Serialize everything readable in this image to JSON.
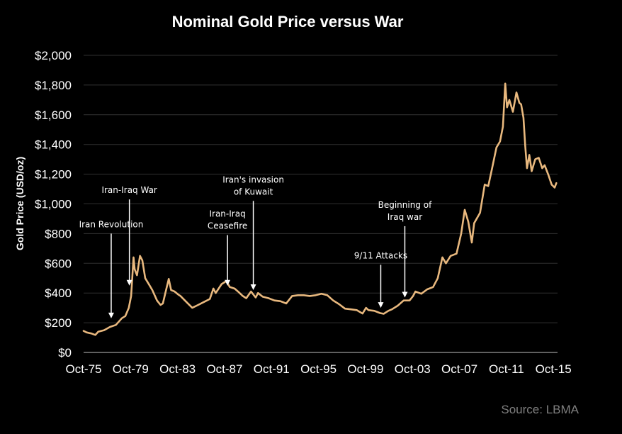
{
  "chart_data": {
    "type": "line",
    "title": "Nominal Gold Price versus War",
    "ylabel": "Gold Price (USD/oz)",
    "xlabel": "",
    "ylim": [
      0,
      2000
    ],
    "xlim": [
      1975.75,
      2016.1
    ],
    "grid": true,
    "line_color": "#e8b87e",
    "y_ticks": [
      {
        "value": 0,
        "label": "$0"
      },
      {
        "value": 200,
        "label": "$200"
      },
      {
        "value": 400,
        "label": "$400"
      },
      {
        "value": 600,
        "label": "$600"
      },
      {
        "value": 800,
        "label": "$800"
      },
      {
        "value": 1000,
        "label": "$1,000"
      },
      {
        "value": 1200,
        "label": "$1,200"
      },
      {
        "value": 1400,
        "label": "$1,400"
      },
      {
        "value": 1600,
        "label": "$1,600"
      },
      {
        "value": 1800,
        "label": "$1,800"
      },
      {
        "value": 2000,
        "label": "$2,000"
      }
    ],
    "x_ticks": [
      {
        "value": 1975.75,
        "label": "Oct-75"
      },
      {
        "value": 1979.75,
        "label": "Oct-79"
      },
      {
        "value": 1983.75,
        "label": "Oct-83"
      },
      {
        "value": 1987.75,
        "label": "Oct-87"
      },
      {
        "value": 1991.75,
        "label": "Oct-91"
      },
      {
        "value": 1995.75,
        "label": "Oct-95"
      },
      {
        "value": 1999.75,
        "label": "Oct-99"
      },
      {
        "value": 2003.75,
        "label": "Oct-03"
      },
      {
        "value": 2007.75,
        "label": "Oct-07"
      },
      {
        "value": 2011.75,
        "label": "Oct-11"
      },
      {
        "value": 2015.75,
        "label": "Oct-15"
      }
    ],
    "series": [
      {
        "points": [
          [
            1975.75,
            145
          ],
          [
            1976.0,
            135
          ],
          [
            1976.4,
            128
          ],
          [
            1976.75,
            118
          ],
          [
            1977.0,
            140
          ],
          [
            1977.5,
            150
          ],
          [
            1978.0,
            172
          ],
          [
            1978.5,
            185
          ],
          [
            1979.0,
            230
          ],
          [
            1979.3,
            245
          ],
          [
            1979.6,
            300
          ],
          [
            1979.8,
            380
          ],
          [
            1980.0,
            640
          ],
          [
            1980.1,
            560
          ],
          [
            1980.3,
            520
          ],
          [
            1980.55,
            650
          ],
          [
            1980.75,
            620
          ],
          [
            1981.0,
            500
          ],
          [
            1981.3,
            460
          ],
          [
            1981.6,
            420
          ],
          [
            1982.0,
            350
          ],
          [
            1982.3,
            320
          ],
          [
            1982.5,
            330
          ],
          [
            1982.8,
            430
          ],
          [
            1983.0,
            495
          ],
          [
            1983.2,
            420
          ],
          [
            1983.5,
            410
          ],
          [
            1983.8,
            390
          ],
          [
            1984.0,
            380
          ],
          [
            1984.5,
            340
          ],
          [
            1985.0,
            300
          ],
          [
            1985.5,
            320
          ],
          [
            1986.0,
            340
          ],
          [
            1986.5,
            360
          ],
          [
            1986.8,
            430
          ],
          [
            1987.0,
            400
          ],
          [
            1987.5,
            460
          ],
          [
            1987.9,
            480
          ],
          [
            1988.2,
            440
          ],
          [
            1988.6,
            430
          ],
          [
            1988.9,
            410
          ],
          [
            1989.3,
            380
          ],
          [
            1989.6,
            365
          ],
          [
            1990.0,
            410
          ],
          [
            1990.4,
            370
          ],
          [
            1990.6,
            400
          ],
          [
            1991.0,
            375
          ],
          [
            1991.5,
            365
          ],
          [
            1992.0,
            350
          ],
          [
            1992.5,
            345
          ],
          [
            1993.0,
            330
          ],
          [
            1993.5,
            380
          ],
          [
            1994.0,
            385
          ],
          [
            1994.5,
            385
          ],
          [
            1995.0,
            380
          ],
          [
            1995.5,
            385
          ],
          [
            1996.0,
            395
          ],
          [
            1996.5,
            385
          ],
          [
            1997.0,
            350
          ],
          [
            1997.5,
            325
          ],
          [
            1998.0,
            295
          ],
          [
            1998.5,
            290
          ],
          [
            1999.0,
            285
          ],
          [
            1999.5,
            262
          ],
          [
            1999.8,
            300
          ],
          [
            2000.0,
            285
          ],
          [
            2000.5,
            280
          ],
          [
            2001.0,
            265
          ],
          [
            2001.3,
            260
          ],
          [
            2001.7,
            280
          ],
          [
            2002.0,
            290
          ],
          [
            2002.5,
            315
          ],
          [
            2003.0,
            350
          ],
          [
            2003.5,
            350
          ],
          [
            2003.8,
            380
          ],
          [
            2004.0,
            410
          ],
          [
            2004.5,
            395
          ],
          [
            2005.0,
            425
          ],
          [
            2005.5,
            440
          ],
          [
            2005.9,
            500
          ],
          [
            2006.3,
            640
          ],
          [
            2006.6,
            600
          ],
          [
            2007.0,
            650
          ],
          [
            2007.5,
            665
          ],
          [
            2007.9,
            800
          ],
          [
            2008.2,
            960
          ],
          [
            2008.5,
            880
          ],
          [
            2008.8,
            740
          ],
          [
            2009.0,
            870
          ],
          [
            2009.5,
            940
          ],
          [
            2009.9,
            1130
          ],
          [
            2010.2,
            1120
          ],
          [
            2010.5,
            1230
          ],
          [
            2010.9,
            1380
          ],
          [
            2011.2,
            1420
          ],
          [
            2011.45,
            1520
          ],
          [
            2011.65,
            1810
          ],
          [
            2011.8,
            1650
          ],
          [
            2012.0,
            1700
          ],
          [
            2012.3,
            1620
          ],
          [
            2012.6,
            1750
          ],
          [
            2012.85,
            1680
          ],
          [
            2013.0,
            1670
          ],
          [
            2013.2,
            1580
          ],
          [
            2013.35,
            1390
          ],
          [
            2013.5,
            1240
          ],
          [
            2013.7,
            1330
          ],
          [
            2013.9,
            1220
          ],
          [
            2014.2,
            1300
          ],
          [
            2014.5,
            1310
          ],
          [
            2014.8,
            1240
          ],
          [
            2015.0,
            1260
          ],
          [
            2015.3,
            1200
          ],
          [
            2015.6,
            1130
          ],
          [
            2015.85,
            1110
          ],
          [
            2016.0,
            1140
          ]
        ]
      }
    ],
    "annotations": [
      {
        "label": [
          "Iran Revolution"
        ],
        "x": 1978.1,
        "y_top": 800,
        "y_tip": 230
      },
      {
        "label": [
          "Iran-Iraq War"
        ],
        "x": 1979.65,
        "y_top": 1030,
        "y_tip": 450
      },
      {
        "label": [
          "Iran-Iraq",
          "Ceasefire"
        ],
        "x": 1988.0,
        "y_top": 790,
        "y_tip": 450
      },
      {
        "label": [
          "Iran's invasion",
          "of Kuwait"
        ],
        "x": 1990.2,
        "y_top": 1020,
        "y_tip": 420
      },
      {
        "label": [
          "9/11 Attacks"
        ],
        "x": 2001.05,
        "y_top": 590,
        "y_tip": 300
      },
      {
        "label": [
          "Beginning of",
          "Iraq war"
        ],
        "x": 2003.1,
        "y_top": 850,
        "y_tip": 370
      }
    ],
    "source": "Source: LBMA"
  }
}
